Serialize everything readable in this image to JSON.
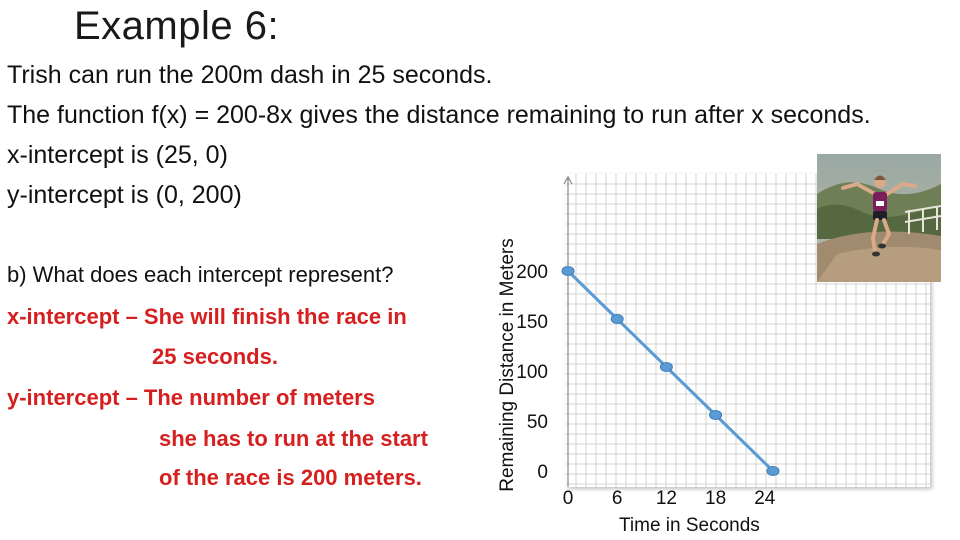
{
  "slide": {
    "title": "Example 6:",
    "lines": [
      "Trish can run the 200m dash in 25 seconds.",
      "The function f(x) = 200-8x gives the distance remaining to run after x seconds.",
      "x-intercept is (25, 0)",
      "y-intercept is (0, 200)"
    ],
    "question": "b) What does each intercept represent?",
    "answers": [
      "x-intercept – She will finish the race in",
      "25 seconds.",
      "y-intercept – The number of meters",
      "she has to run at the start",
      "of the race is 200 meters."
    ],
    "colors": {
      "answer": "#d62020",
      "line": "#5b9bd5",
      "grid": "#c8c8c8"
    },
    "photo": {
      "icon": "runner-photo"
    }
  },
  "chart_data": {
    "type": "line",
    "xlabel": "Time in Seconds",
    "ylabel": "Remaining Distance in Meters",
    "x_ticks": [
      "0",
      "6",
      "12",
      "18",
      "24"
    ],
    "y_ticks": [
      "0",
      "50",
      "100",
      "150",
      "200"
    ],
    "series": [
      {
        "points": [
          {
            "x": 0,
            "y": 200
          },
          {
            "x": 6,
            "y": 152
          },
          {
            "x": 12,
            "y": 104
          },
          {
            "x": 18,
            "y": 56
          },
          {
            "x": 25,
            "y": 0
          }
        ]
      }
    ],
    "xlim": [
      0,
      25
    ],
    "ylim": [
      0,
      200
    ],
    "grid": true
  }
}
